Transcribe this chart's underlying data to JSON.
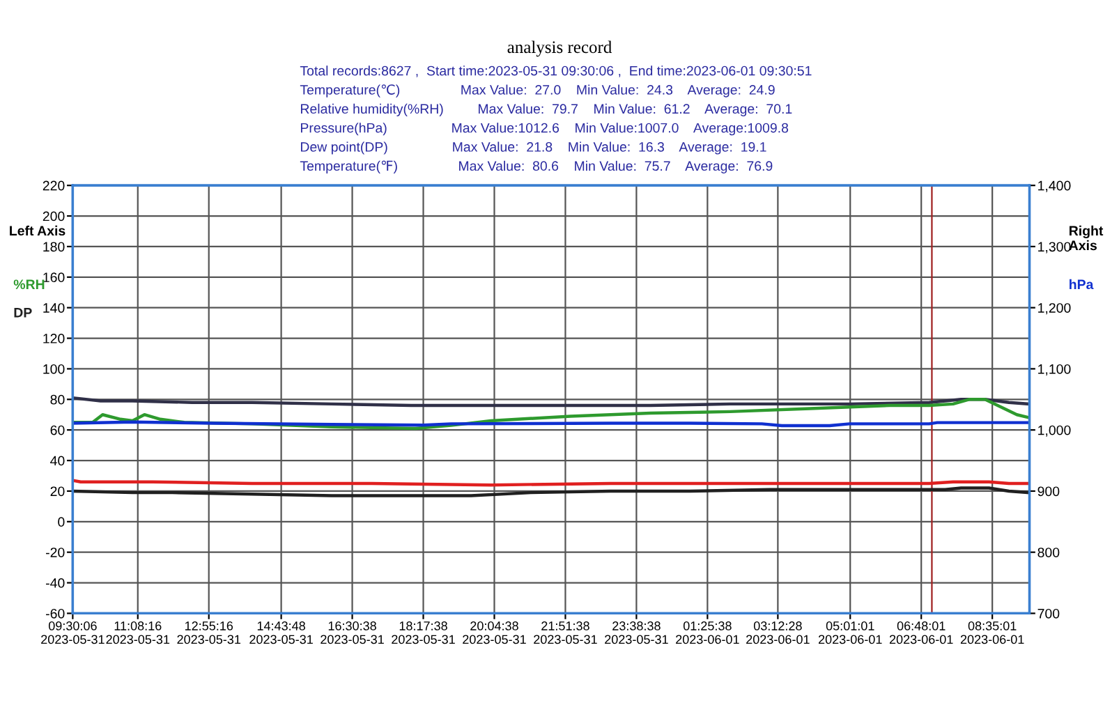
{
  "chart_data": {
    "type": "line",
    "title": "analysis record",
    "subtitle": "Total records:8627 ,  Start time:2023-05-31 09:30:06 ,  End time:2023-06-01 09:30:51",
    "annotations": [
      "Temperature(℃)                Max Value:  27.0    Min Value:  24.3    Average:  24.9",
      "Relative humidity(%RH)         Max Value:  79.7    Min Value:  61.2    Average:  70.1",
      "Pressure(hPa)                 Max Value:1012.6    Min Value:1007.0    Average:1009.8",
      "Dew point(DP)                 Max Value:  21.8    Min Value:  16.3    Average:  19.1",
      "Temperature(℉)                Max Value:  80.6    Min Value:  75.7    Average:  76.9"
    ],
    "ylabel": "Left Axis",
    "y2label": "Right Axis",
    "xlim": [
      "2023-05-31T09:30",
      "2023-06-01T09:31"
    ],
    "xticks": [
      {
        "value": "2023-05-31T09:30",
        "label": "09:30:06\n2023-05-31"
      },
      {
        "value": "2023-05-31T11:08",
        "label": "11:08:16\n2023-05-31"
      },
      {
        "value": "2023-05-31T12:55",
        "label": "12:55:16\n2023-05-31"
      },
      {
        "value": "2023-05-31T14:44",
        "label": "14:43:48\n2023-05-31"
      },
      {
        "value": "2023-05-31T16:31",
        "label": "16:30:38\n2023-05-31"
      },
      {
        "value": "2023-05-31T18:18",
        "label": "18:17:38\n2023-05-31"
      },
      {
        "value": "2023-05-31T20:05",
        "label": "20:04:38\n2023-05-31"
      },
      {
        "value": "2023-05-31T21:52",
        "label": "21:51:38\n2023-05-31"
      },
      {
        "value": "2023-05-31T23:39",
        "label": "23:38:38\n2023-05-31"
      },
      {
        "value": "2023-06-01T01:26",
        "label": "01:25:38\n2023-06-01"
      },
      {
        "value": "2023-06-01T03:12",
        "label": "03:12:28\n2023-06-01"
      },
      {
        "value": "2023-06-01T05:01",
        "label": "05:01:01\n2023-06-01"
      },
      {
        "value": "2023-06-01T06:48",
        "label": "06:48:01\n2023-06-01"
      },
      {
        "value": "2023-06-01T08:35",
        "label": "08:35:01\n2023-06-01"
      }
    ],
    "ylim": [
      -60,
      220
    ],
    "yticks": [
      -60,
      -40,
      -20,
      0,
      20,
      40,
      60,
      80,
      100,
      120,
      140,
      160,
      180,
      200,
      220
    ],
    "y2lim": [
      700,
      1400
    ],
    "y2ticks": [
      700,
      800,
      900,
      {
        "value": 1000,
        "label": "1,000"
      },
      {
        "value": 1100,
        "label": "1,100"
      },
      {
        "value": 1200,
        "label": "1,200"
      },
      {
        "value": 1300,
        "label": "1,300"
      },
      {
        "value": 1400,
        "label": "1,400"
      }
    ],
    "grid": true,
    "legend": "left",
    "ref_lines": [
      {
        "axis": "x",
        "value": "2023-06-01T07:04",
        "color": "#a02020"
      }
    ],
    "series": [
      {
        "color": "#303048",
        "x": [
          "2023-05-31T09:30",
          "2023-05-31T10:12",
          "2023-05-31T11:00",
          "2023-05-31T12:30",
          "2023-05-31T14:00",
          "2023-05-31T16:00",
          "2023-05-31T18:00",
          "2023-05-31T20:00",
          "2023-05-31T22:00",
          "2023-06-01T00:00",
          "2023-06-01T02:00",
          "2023-06-01T03:30",
          "2023-06-01T05:00",
          "2023-06-01T07:00",
          "2023-06-01T07:48",
          "2023-06-01T08:24",
          "2023-06-01T09:00",
          "2023-06-01T09:31"
        ],
        "values": [
          81,
          79,
          79,
          78,
          78,
          77,
          76,
          76,
          76,
          76,
          77,
          77,
          77,
          78,
          80,
          80,
          78,
          77
        ]
      },
      {
        "name": "%RH",
        "color": "#2e9a2e",
        "x": [
          "2023-05-31T09:30",
          "2023-05-31T10:00",
          "2023-05-31T10:15",
          "2023-05-31T10:42",
          "2023-05-31T11:00",
          "2023-05-31T11:18",
          "2023-05-31T11:42",
          "2023-05-31T12:18",
          "2023-05-31T14:00",
          "2023-05-31T16:00",
          "2023-05-31T18:06",
          "2023-05-31T19:00",
          "2023-05-31T20:00",
          "2023-05-31T22:00",
          "2023-06-01T00:00",
          "2023-06-01T02:00",
          "2023-06-01T04:00",
          "2023-06-01T06:00",
          "2023-06-01T07:00",
          "2023-06-01T07:36",
          "2023-06-01T08:00",
          "2023-06-01T08:24",
          "2023-06-01T08:48",
          "2023-06-01T09:12",
          "2023-06-01T09:31"
        ],
        "values": [
          65,
          65,
          70,
          67,
          66,
          70,
          67,
          65,
          64,
          62,
          61,
          63,
          66,
          69,
          71,
          72,
          74,
          76,
          76,
          77,
          80,
          80,
          75,
          70,
          68
        ]
      },
      {
        "name": "DP",
        "color": "#202020",
        "x": [
          "2023-05-31T09:30",
          "2023-05-31T11:00",
          "2023-05-31T12:00",
          "2023-05-31T14:00",
          "2023-05-31T16:00",
          "2023-05-31T18:00",
          "2023-05-31T19:30",
          "2023-05-31T21:00",
          "2023-05-31T23:00",
          "2023-06-01T01:00",
          "2023-06-01T03:00",
          "2023-06-01T06:00",
          "2023-06-01T07:24",
          "2023-06-01T07:48",
          "2023-06-01T08:30",
          "2023-06-01T09:00",
          "2023-06-01T09:31"
        ],
        "values": [
          20,
          19,
          19,
          18,
          17,
          17,
          17,
          19,
          20,
          20,
          21,
          21,
          21,
          22,
          22,
          20,
          19
        ]
      },
      {
        "color": "#e02020",
        "x": [
          "2023-05-31T09:30",
          "2023-05-31T09:42",
          "2023-05-31T10:48",
          "2023-05-31T11:30",
          "2023-05-31T14:00",
          "2023-05-31T17:00",
          "2023-05-31T20:00",
          "2023-05-31T23:00",
          "2023-06-01T03:00",
          "2023-06-01T07:00",
          "2023-06-01T07:36",
          "2023-06-01T08:30",
          "2023-06-01T09:00",
          "2023-06-01T09:31"
        ],
        "values": [
          27,
          26,
          26,
          26,
          25,
          25,
          24,
          25,
          25,
          25,
          26,
          26,
          25,
          25
        ]
      },
      {
        "name": "hPa",
        "axis": "y2",
        "color": "#1030d0",
        "x": [
          "2023-05-31T09:30",
          "2023-05-31T11:00",
          "2023-05-31T13:00",
          "2023-05-31T16:00",
          "2023-05-31T18:18",
          "2023-05-31T19:00",
          "2023-05-31T23:00",
          "2023-06-01T01:00",
          "2023-06-01T02:48",
          "2023-06-01T03:18",
          "2023-06-01T04:30",
          "2023-06-01T05:00",
          "2023-06-01T07:00",
          "2023-06-01T07:12",
          "2023-06-01T09:31"
        ],
        "values": [
          1011,
          1013,
          1011,
          1009,
          1008,
          1010,
          1011,
          1011,
          1010,
          1007,
          1007,
          1010,
          1010,
          1012,
          1012
        ]
      }
    ]
  }
}
